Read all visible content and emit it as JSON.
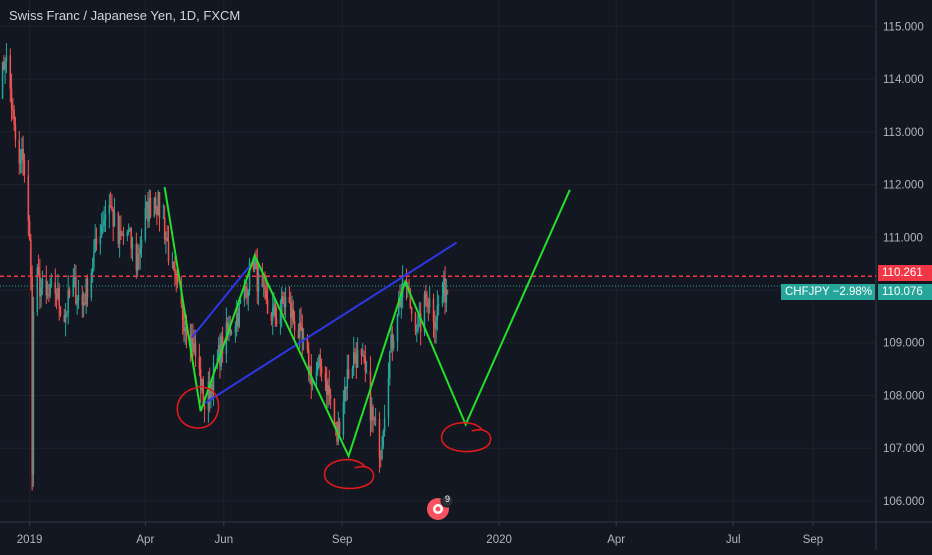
{
  "chart_data": {
    "type": "candlestick",
    "title": "Swiss Franc / Japanese Yen, 1D, FXCM",
    "symbol": "CHFJPY",
    "change": "−2.98%",
    "ylim": [
      105.6,
      115.5
    ],
    "yticks": [
      "115.000",
      "114.000",
      "113.000",
      "112.000",
      "111.000",
      "110.000",
      "109.000",
      "108.000",
      "107.000",
      "106.000"
    ],
    "ytick_values": [
      115,
      114,
      113,
      112,
      111,
      110,
      109,
      108,
      107,
      106
    ],
    "xticks": [
      "2019",
      "Apr",
      "Jun",
      "Sep",
      "2020",
      "Apr",
      "Jul",
      "Sep"
    ],
    "xtick_dates": [
      "2019-01-01",
      "2019-04-01",
      "2019-06-01",
      "2019-09-01",
      "2020-01-01",
      "2020-04-01",
      "2020-07-01",
      "2020-09-01"
    ],
    "xlim": [
      "2018-12-09",
      "2020-10-20"
    ],
    "horizontal_level": {
      "value": 110.261,
      "label": "110.261",
      "color": "#f23645",
      "style": "dashed"
    },
    "last_price": {
      "value": 110.076,
      "label": "110.076",
      "symbol_label": "CHFJPY −2.98%",
      "color": "#26a69a"
    },
    "price_path": [
      [
        "2018-12-10",
        113.9
      ],
      [
        "2018-12-13",
        114.5
      ],
      [
        "2018-12-17",
        113.8
      ],
      [
        "2018-12-20",
        113.0
      ],
      [
        "2018-12-24",
        112.3
      ],
      [
        "2018-12-27",
        112.6
      ],
      [
        "2019-01-02",
        110.5
      ],
      [
        "2019-01-03",
        106.4
      ],
      [
        "2019-01-04",
        109.6
      ],
      [
        "2019-01-07",
        110.2
      ],
      [
        "2019-01-14",
        109.8
      ],
      [
        "2019-01-21",
        110.0
      ],
      [
        "2019-01-28",
        109.5
      ],
      [
        "2019-02-04",
        110.1
      ],
      [
        "2019-02-11",
        109.7
      ],
      [
        "2019-02-18",
        110.4
      ],
      [
        "2019-02-25",
        111.2
      ],
      [
        "2019-03-04",
        111.7
      ],
      [
        "2019-03-11",
        110.9
      ],
      [
        "2019-03-18",
        111.1
      ],
      [
        "2019-03-25",
        110.5
      ],
      [
        "2019-04-01",
        111.4
      ],
      [
        "2019-04-08",
        111.8
      ],
      [
        "2019-04-15",
        111.3
      ],
      [
        "2019-04-22",
        110.3
      ],
      [
        "2019-04-29",
        109.6
      ],
      [
        "2019-05-06",
        109.2
      ],
      [
        "2019-05-13",
        108.4
      ],
      [
        "2019-05-17",
        107.8
      ],
      [
        "2019-05-23",
        108.3
      ],
      [
        "2019-05-30",
        108.9
      ],
      [
        "2019-06-06",
        109.3
      ],
      [
        "2019-06-13",
        109.6
      ],
      [
        "2019-06-20",
        110.2
      ],
      [
        "2019-06-24",
        110.6
      ],
      [
        "2019-06-28",
        110.1
      ],
      [
        "2019-07-05",
        109.6
      ],
      [
        "2019-07-12",
        109.5
      ],
      [
        "2019-07-19",
        109.8
      ],
      [
        "2019-07-26",
        109.4
      ],
      [
        "2019-08-02",
        108.9
      ],
      [
        "2019-08-09",
        108.3
      ],
      [
        "2019-08-16",
        108.6
      ],
      [
        "2019-08-23",
        107.9
      ],
      [
        "2019-08-28",
        107.2
      ],
      [
        "2019-09-04",
        108.3
      ],
      [
        "2019-09-11",
        108.8
      ],
      [
        "2019-09-18",
        108.5
      ],
      [
        "2019-09-25",
        107.5
      ],
      [
        "2019-10-01",
        107.0
      ],
      [
        "2019-10-07",
        108.6
      ],
      [
        "2019-10-14",
        109.7
      ],
      [
        "2019-10-21",
        110.1
      ],
      [
        "2019-10-25",
        109.6
      ],
      [
        "2019-10-31",
        109.3
      ],
      [
        "2019-11-06",
        109.9
      ],
      [
        "2019-11-12",
        109.5
      ],
      [
        "2019-11-18",
        109.9
      ],
      [
        "2019-11-22",
        110.1
      ]
    ],
    "drawings": {
      "green_path": [
        [
          "2019-04-16",
          111.95
        ],
        [
          "2019-05-14",
          107.7
        ],
        [
          "2019-06-25",
          110.65
        ],
        [
          "2019-09-06",
          106.85
        ],
        [
          "2019-10-20",
          110.15
        ],
        [
          "2019-12-06",
          107.45
        ],
        [
          "2020-02-25",
          111.9
        ]
      ],
      "blue_channel": [
        [
          [
            "2019-05-07",
            109.1
          ],
          [
            "2019-06-21",
            110.45
          ]
        ],
        [
          [
            "2019-05-17",
            107.85
          ],
          [
            "2019-11-29",
            110.9
          ]
        ]
      ],
      "red_markers": [
        {
          "date": "2019-05-17",
          "price": 107.8,
          "kind": "ellipse"
        },
        {
          "date": "2019-09-06",
          "price": 106.55,
          "kind": "swirl"
        },
        {
          "date": "2019-12-06",
          "price": 107.25,
          "kind": "swirl"
        }
      ]
    },
    "colors": {
      "up": "#26a69a",
      "down": "#ef5350",
      "background": "#131722",
      "grid": "#1e222d",
      "text": "#b2b5be"
    }
  },
  "badge": {
    "count": "9"
  }
}
